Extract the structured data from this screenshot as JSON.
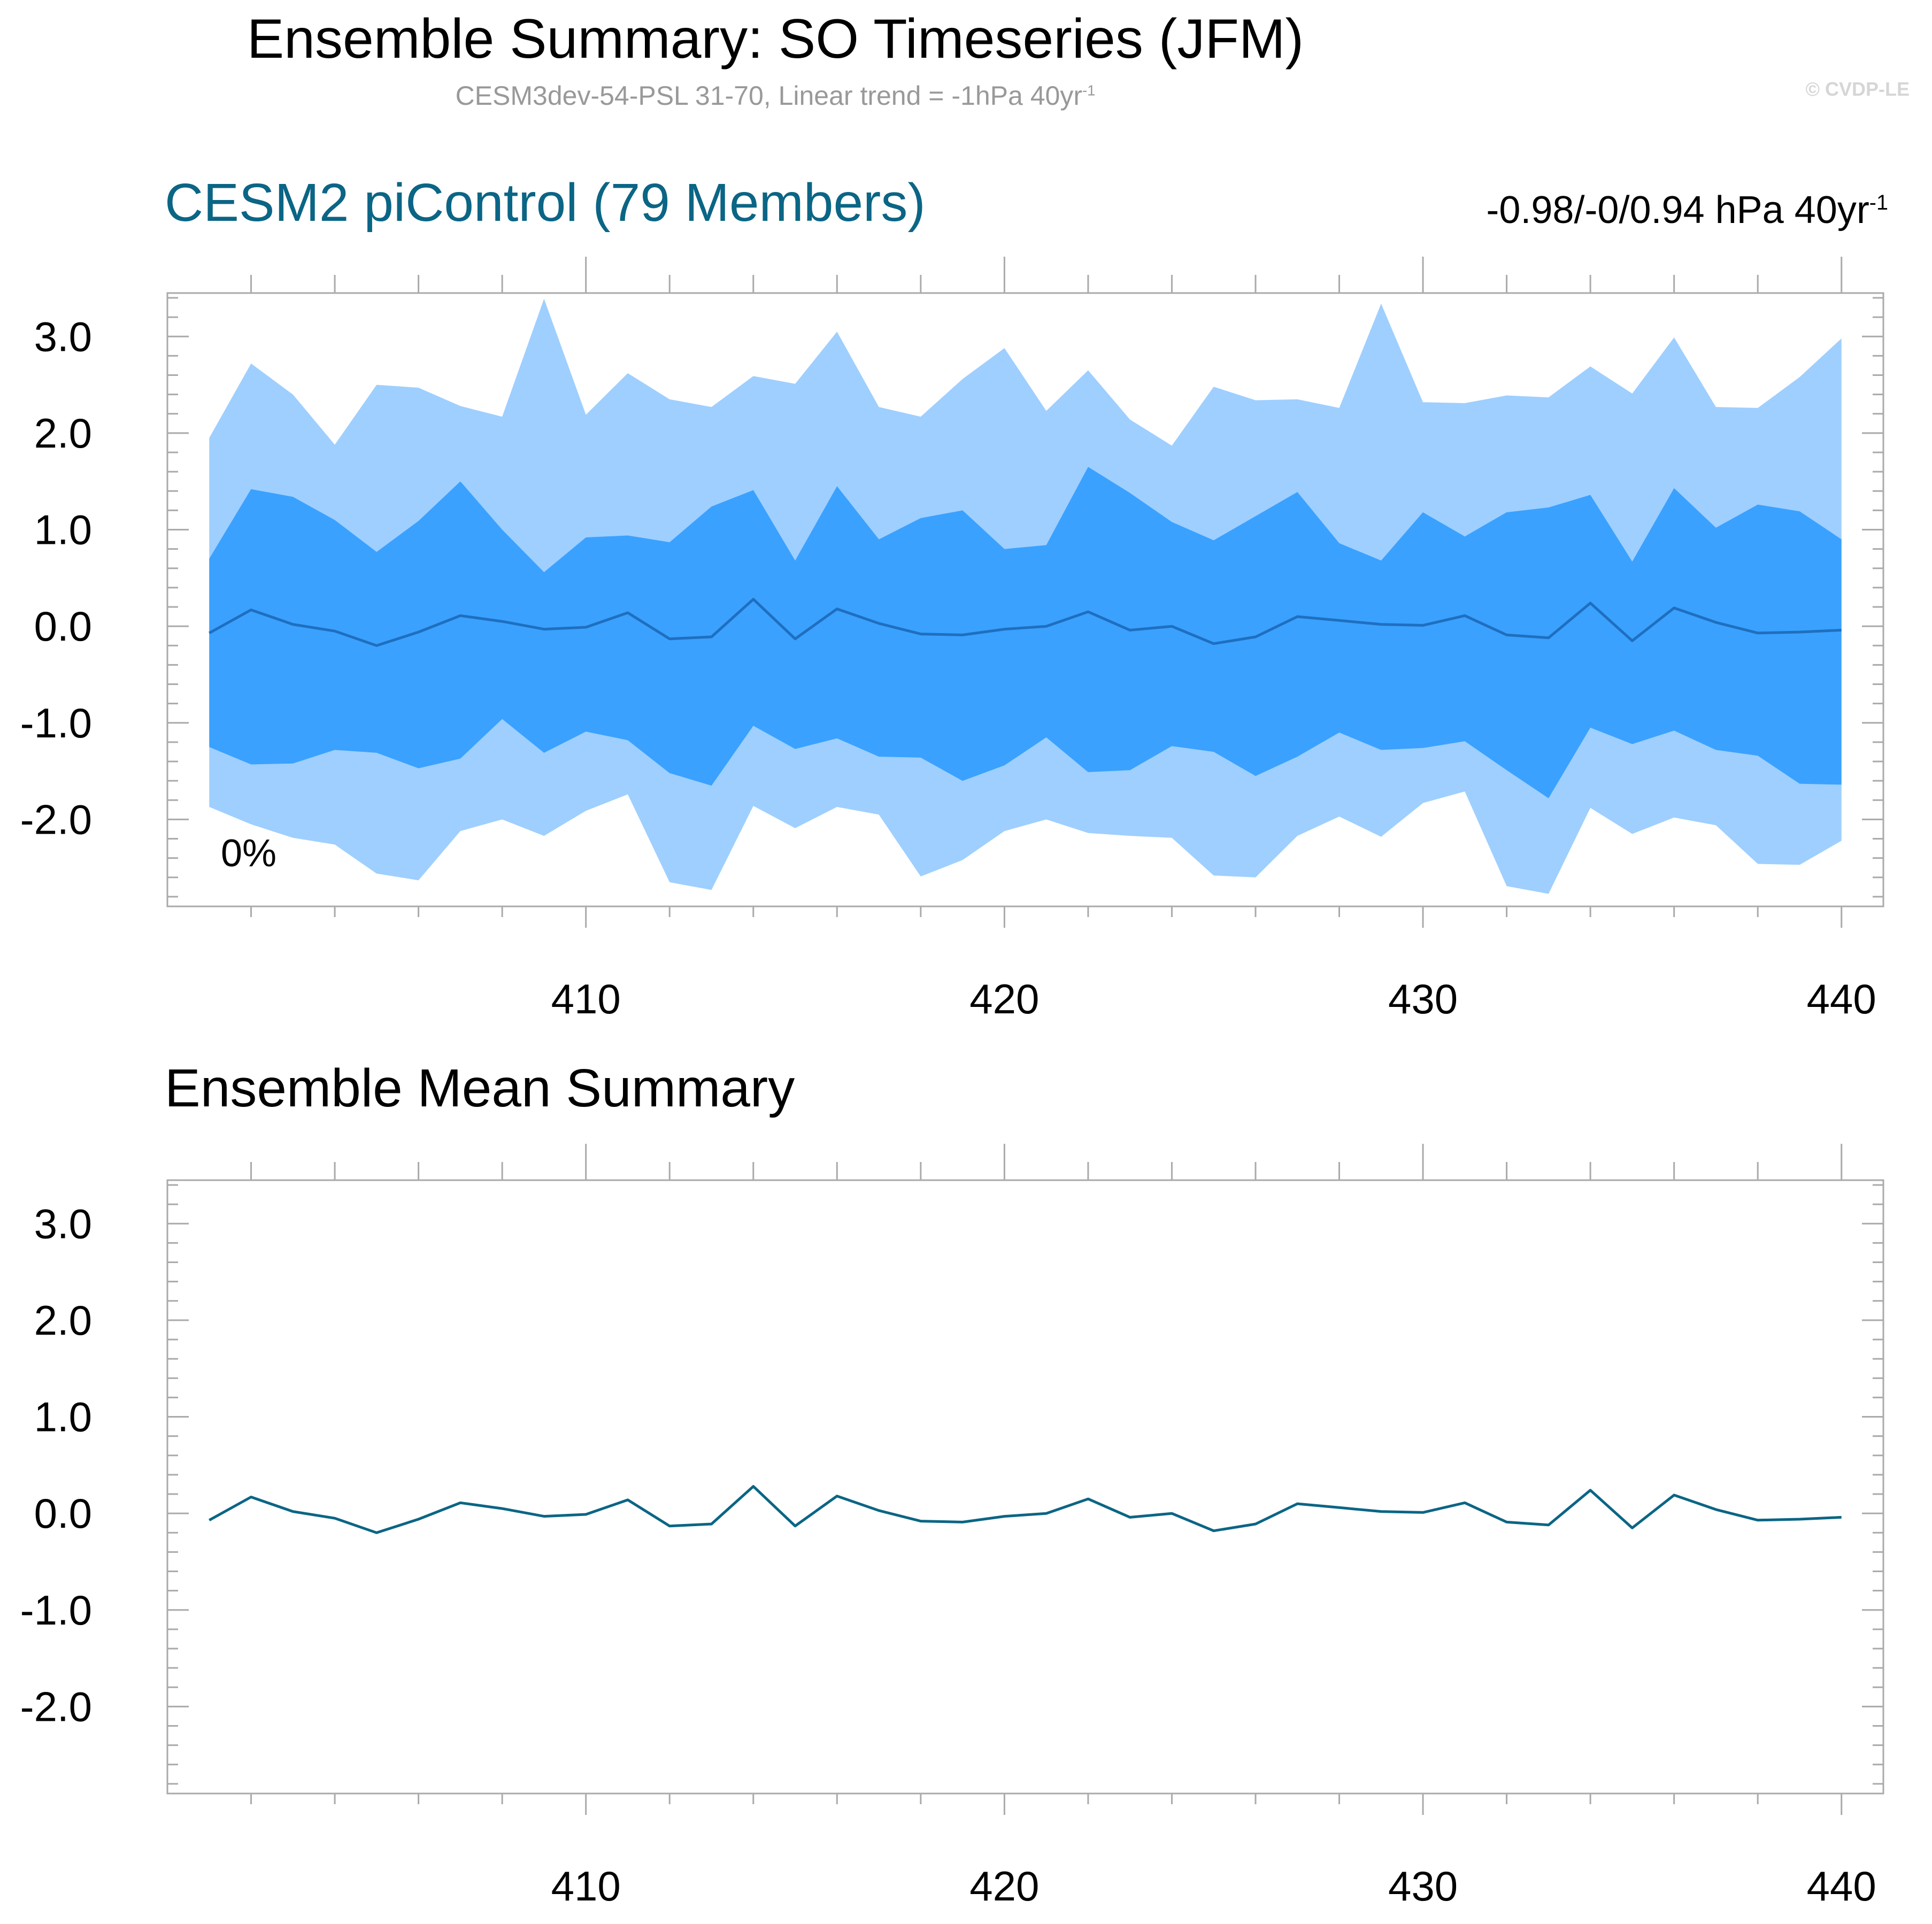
{
  "header": {
    "title": "Ensemble Summary: SO Timeseries (JFM)",
    "subtitle_main": "CESM3dev-54-PSL 31-70, Linear trend = -1hPa 40yr",
    "subtitle_sup": "-1",
    "watermark": "© CVDP-LE"
  },
  "panel1": {
    "title": "CESM2 piControl (79 Members)",
    "trend_main": "-0.98/-0/0.94 hPa 40yr",
    "trend_sup": "-1",
    "annotation": "0%"
  },
  "panel2": {
    "title": "Ensemble Mean Summary"
  },
  "colors": {
    "outer_band": "#9ecfff",
    "inner_band": "#3aa1ff",
    "mean_line_panel1": "#1f6fbf",
    "mean_line_panel2": "#0b6585",
    "title_accent": "#0b6585"
  },
  "chart_data": [
    {
      "type": "area",
      "title": "CESM2 piControl (79 Members)",
      "x": [
        401,
        402,
        403,
        404,
        405,
        406,
        407,
        408,
        409,
        410,
        411,
        412,
        413,
        414,
        415,
        416,
        417,
        418,
        419,
        420,
        421,
        422,
        423,
        424,
        425,
        426,
        427,
        428,
        429,
        430,
        431,
        432,
        433,
        434,
        435,
        436,
        437,
        438,
        439,
        440
      ],
      "xlim": [
        400,
        441
      ],
      "ylim": [
        -2.9,
        3.45
      ],
      "xticks": [
        410,
        420,
        430,
        440
      ],
      "xtick_labels": [
        "410",
        "420",
        "430",
        "440"
      ],
      "yticks": [
        -2,
        -1,
        0,
        1,
        2,
        3
      ],
      "ytick_labels": [
        "-2.0",
        "-1.0",
        "0.0",
        "1.0",
        "2.0",
        "3.0"
      ],
      "series": [
        {
          "role": "outer_upper",
          "values": [
            1.95,
            2.72,
            2.4,
            1.88,
            2.5,
            2.47,
            2.28,
            2.17,
            3.39,
            2.19,
            2.62,
            2.35,
            2.27,
            2.59,
            2.51,
            3.05,
            2.27,
            2.17,
            2.56,
            2.88,
            2.23,
            2.65,
            2.14,
            1.87,
            2.48,
            2.34,
            2.35,
            2.26,
            3.34,
            2.32,
            2.31,
            2.39,
            2.37,
            2.69,
            2.41,
            2.99,
            2.27,
            2.26,
            2.58,
            2.98
          ]
        },
        {
          "role": "inner_upper",
          "values": [
            0.7,
            1.42,
            1.34,
            1.1,
            0.77,
            1.09,
            1.5,
            1.0,
            0.56,
            0.92,
            0.94,
            0.87,
            1.24,
            1.41,
            0.68,
            1.45,
            0.9,
            1.12,
            1.2,
            0.8,
            0.84,
            1.65,
            1.38,
            1.08,
            0.89,
            1.14,
            1.39,
            0.86,
            0.68,
            1.18,
            0.93,
            1.18,
            1.23,
            1.36,
            0.67,
            1.43,
            1.02,
            1.26,
            1.19,
            0.9
          ]
        },
        {
          "role": "mean",
          "values": [
            -0.07,
            0.17,
            0.02,
            -0.05,
            -0.2,
            -0.06,
            0.11,
            0.05,
            -0.03,
            -0.01,
            0.14,
            -0.13,
            -0.11,
            0.28,
            -0.13,
            0.18,
            0.03,
            -0.08,
            -0.09,
            -0.03,
            0.0,
            0.15,
            -0.04,
            0.0,
            -0.18,
            -0.11,
            0.1,
            0.06,
            0.02,
            0.01,
            0.11,
            -0.09,
            -0.12,
            0.24,
            -0.15,
            0.19,
            0.04,
            -0.07,
            -0.06,
            -0.04
          ]
        },
        {
          "role": "inner_lower",
          "values": [
            -1.25,
            -1.43,
            -1.42,
            -1.28,
            -1.31,
            -1.47,
            -1.37,
            -0.96,
            -1.31,
            -1.09,
            -1.18,
            -1.52,
            -1.65,
            -1.03,
            -1.27,
            -1.16,
            -1.35,
            -1.36,
            -1.6,
            -1.44,
            -1.15,
            -1.51,
            -1.49,
            -1.24,
            -1.3,
            -1.55,
            -1.35,
            -1.1,
            -1.28,
            -1.26,
            -1.19,
            -1.49,
            -1.78,
            -1.05,
            -1.22,
            -1.08,
            -1.28,
            -1.34,
            -1.63,
            -1.64
          ]
        },
        {
          "role": "outer_lower",
          "values": [
            -1.87,
            -2.05,
            -2.19,
            -2.26,
            -2.56,
            -2.63,
            -2.12,
            -2.0,
            -2.17,
            -1.91,
            -1.74,
            -2.65,
            -2.73,
            -1.86,
            -2.09,
            -1.87,
            -1.95,
            -2.59,
            -2.42,
            -2.12,
            -2.0,
            -2.14,
            -2.17,
            -2.19,
            -2.58,
            -2.6,
            -2.17,
            -1.97,
            -2.18,
            -1.83,
            -1.71,
            -2.69,
            -2.77,
            -1.88,
            -2.15,
            -1.98,
            -2.06,
            -2.46,
            -2.47,
            -2.22
          ]
        }
      ]
    },
    {
      "type": "line",
      "title": "Ensemble Mean Summary",
      "x": [
        401,
        402,
        403,
        404,
        405,
        406,
        407,
        408,
        409,
        410,
        411,
        412,
        413,
        414,
        415,
        416,
        417,
        418,
        419,
        420,
        421,
        422,
        423,
        424,
        425,
        426,
        427,
        428,
        429,
        430,
        431,
        432,
        433,
        434,
        435,
        436,
        437,
        438,
        439,
        440
      ],
      "xlim": [
        400,
        441
      ],
      "ylim": [
        -2.9,
        3.45
      ],
      "xticks": [
        410,
        420,
        430,
        440
      ],
      "xtick_labels": [
        "410",
        "420",
        "430",
        "440"
      ],
      "yticks": [
        -2,
        -1,
        0,
        1,
        2,
        3
      ],
      "ytick_labels": [
        "-2.0",
        "-1.0",
        "0.0",
        "1.0",
        "2.0",
        "3.0"
      ],
      "series": [
        {
          "role": "mean",
          "values": [
            -0.07,
            0.17,
            0.02,
            -0.05,
            -0.2,
            -0.06,
            0.11,
            0.05,
            -0.03,
            -0.01,
            0.14,
            -0.13,
            -0.11,
            0.28,
            -0.13,
            0.18,
            0.03,
            -0.08,
            -0.09,
            -0.03,
            0.0,
            0.15,
            -0.04,
            0.0,
            -0.18,
            -0.11,
            0.1,
            0.06,
            0.02,
            0.01,
            0.11,
            -0.09,
            -0.12,
            0.24,
            -0.15,
            0.19,
            0.04,
            -0.07,
            -0.06,
            -0.04
          ]
        }
      ]
    }
  ]
}
